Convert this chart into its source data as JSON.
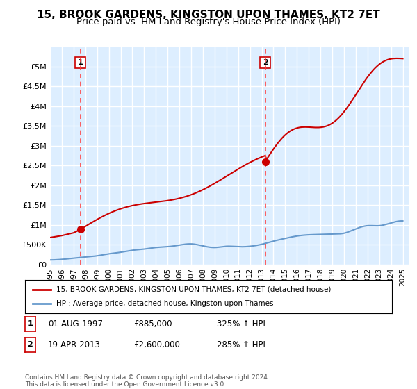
{
  "title": "15, BROOK GARDENS, KINGSTON UPON THAMES, KT2 7ET",
  "subtitle": "Price paid vs. HM Land Registry's House Price Index (HPI)",
  "title_fontsize": 11,
  "subtitle_fontsize": 9.5,
  "ylabel_ticks": [
    "£0",
    "£500K",
    "£1M",
    "£1.5M",
    "£2M",
    "£2.5M",
    "£3M",
    "£3.5M",
    "£4M",
    "£4.5M",
    "£5M"
  ],
  "ytick_values": [
    0,
    500000,
    1000000,
    1500000,
    2000000,
    2500000,
    3000000,
    3500000,
    4000000,
    4500000,
    5000000
  ],
  "ylim": [
    0,
    5500000
  ],
  "xlim_start": 1995.0,
  "xlim_end": 2025.5,
  "sale1_x": 1997.58,
  "sale1_y": 885000,
  "sale2_x": 2013.3,
  "sale2_y": 2600000,
  "sale1_label": "1",
  "sale2_label": "2",
  "legend_line1": "15, BROOK GARDENS, KINGSTON UPON THAMES, KT2 7ET (detached house)",
  "legend_line2": "HPI: Average price, detached house, Kingston upon Thames",
  "table_row1": [
    "1",
    "01-AUG-1997",
    "£885,000",
    "325% ↑ HPI"
  ],
  "table_row2": [
    "2",
    "19-APR-2013",
    "£2,600,000",
    "285% ↑ HPI"
  ],
  "footnote": "Contains HM Land Registry data © Crown copyright and database right 2024.\nThis data is licensed under the Open Government Licence v3.0.",
  "property_color": "#cc0000",
  "hpi_color": "#6699cc",
  "background_color": "#ddeeff",
  "plot_bg_color": "#ddeeff",
  "grid_color": "#ffffff",
  "dashed_line_color": "#ff4444"
}
